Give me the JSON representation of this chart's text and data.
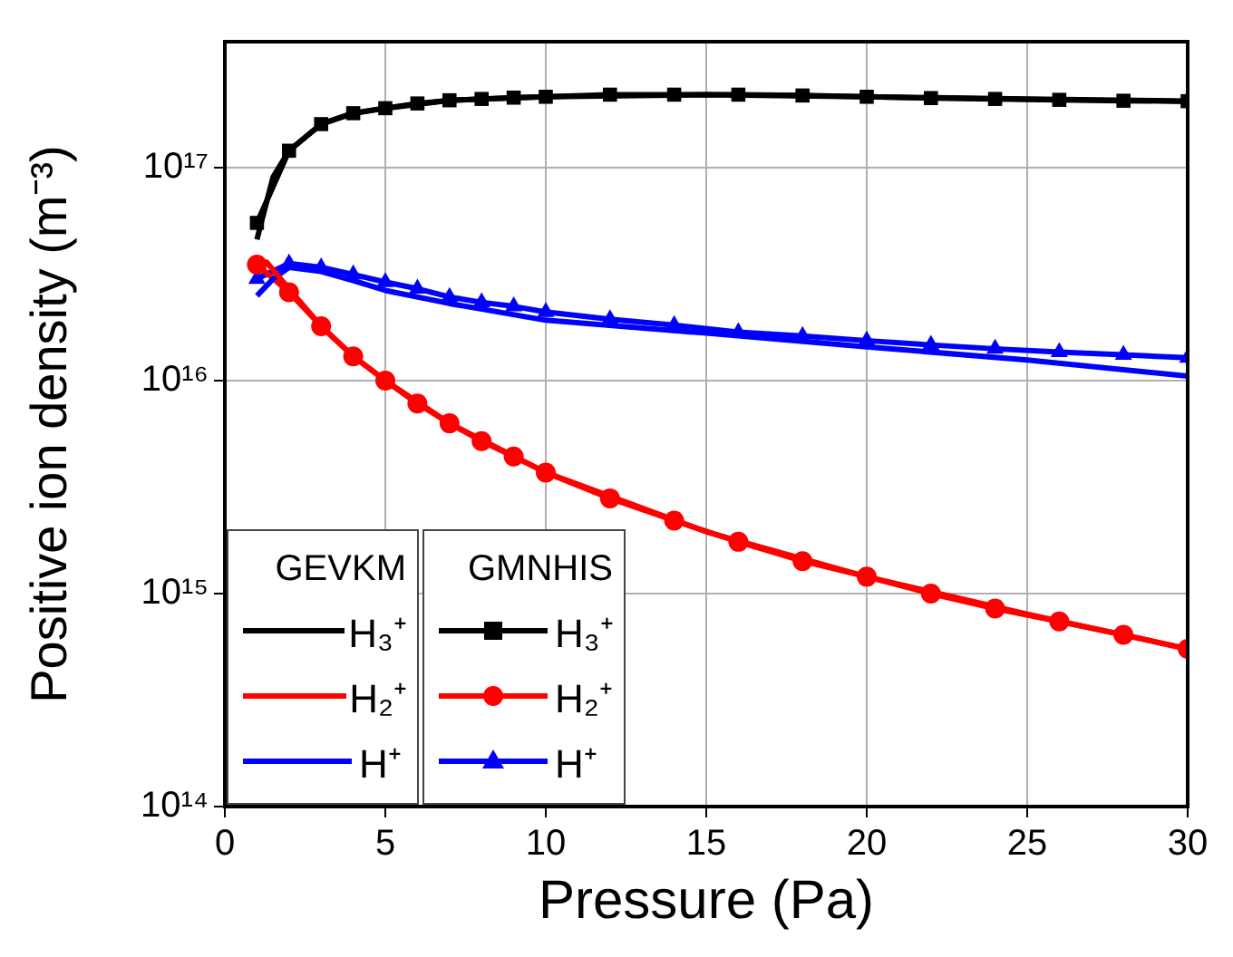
{
  "chart_data": {
    "type": "line",
    "xlabel": "Pressure (Pa)",
    "ylabel": "Positive ion density (m⁻³)",
    "annotations": [
      "GEVKM",
      "GMNHIS"
    ],
    "xlim": [
      0,
      30
    ],
    "xticks": [
      0,
      5,
      10,
      15,
      20,
      25,
      30
    ],
    "ylim": [
      100000000000000.0,
      3.9e+17
    ],
    "yticks": [
      {
        "value": 100000000000000.0,
        "label": "10¹⁴"
      },
      {
        "value": 1000000000000000.0,
        "label": "10¹⁵"
      },
      {
        "value": 1e+16,
        "label": "10¹⁶"
      },
      {
        "value": 1e+17,
        "label": "10¹⁷"
      }
    ],
    "log": "y",
    "grid": true,
    "legend": "bottom left",
    "line_style": "solid",
    "series": [
      {
        "name": "H₃⁺",
        "color": "#000000",
        "x": [
          1,
          1.5,
          2,
          3,
          4,
          5,
          7,
          10,
          15,
          20,
          25,
          30
        ],
        "values": [
          4.6e+16,
          9e+16,
          1.2e+17,
          1.6e+17,
          1.8e+17,
          1.9e+17,
          2.07e+17,
          2.15e+17,
          2.2e+17,
          2.15e+17,
          2.1e+17,
          2.05e+17
        ]
      },
      {
        "name": "H₂⁺",
        "color": "#ff0000",
        "x": [
          1,
          1.3,
          2,
          3,
          4,
          5,
          7,
          10,
          15,
          20,
          25,
          30
        ],
        "values": [
          3.5e+16,
          3.6e+16,
          2.7e+16,
          1.8e+16,
          1.3e+16,
          1e+16,
          6300000000000000.0,
          3700000000000000.0,
          1950000000000000.0,
          1200000000000000.0,
          800000000000000.0,
          550000000000000.0
        ]
      },
      {
        "name": "H⁺",
        "color": "#0000ff",
        "x": [
          1,
          1.5,
          2,
          3,
          4,
          5,
          7,
          10,
          15,
          20,
          25,
          30
        ],
        "values": [
          2.5e+16,
          3e+16,
          3.4e+16,
          3.25e+16,
          2.95e+16,
          2.65e+16,
          2.3e+16,
          1.92e+16,
          1.67e+16,
          1.44e+16,
          1.25e+16,
          1.05e+16
        ]
      },
      {
        "name": "H₃⁺",
        "color": "#000000",
        "marker": "square",
        "x": [
          1,
          2,
          3,
          4,
          5,
          6,
          7,
          8,
          9,
          10,
          12,
          14,
          16,
          18,
          20,
          22,
          24,
          26,
          28,
          30
        ],
        "values": [
          5.5e+16,
          1.2e+17,
          1.6e+17,
          1.8e+17,
          1.9e+17,
          2e+17,
          2.07e+17,
          2.1e+17,
          2.13e+17,
          2.15e+17,
          2.2e+17,
          2.2e+17,
          2.2e+17,
          2.18e+17,
          2.15e+17,
          2.12e+17,
          2.1e+17,
          2.08e+17,
          2.06e+17,
          2.05e+17
        ]
      },
      {
        "name": "H₂⁺",
        "color": "#ff0000",
        "marker": "circle",
        "x": [
          1,
          2,
          3,
          4,
          5,
          6,
          7,
          8,
          9,
          10,
          12,
          14,
          16,
          18,
          20,
          22,
          24,
          26,
          28,
          30
        ],
        "values": [
          3.5e+16,
          2.6e+16,
          1.8e+16,
          1.3e+16,
          1e+16,
          7800000000000000.0,
          6300000000000000.0,
          5200000000000000.0,
          4400000000000000.0,
          3700000000000000.0,
          2800000000000000.0,
          2200000000000000.0,
          1750000000000000.0,
          1420000000000000.0,
          1200000000000000.0,
          1000000000000000.0,
          850000000000000.0,
          740000000000000.0,
          640000000000000.0,
          550000000000000.0
        ]
      },
      {
        "name": "H⁺",
        "color": "#0000ff",
        "marker": "triangle",
        "x": [
          1,
          2,
          3,
          4,
          5,
          6,
          7,
          8,
          9,
          10,
          12,
          14,
          16,
          18,
          20,
          22,
          24,
          26,
          28,
          30
        ],
        "values": [
          3e+16,
          3.55e+16,
          3.4e+16,
          3.15e+16,
          2.9e+16,
          2.7e+16,
          2.47e+16,
          2.33e+16,
          2.23e+16,
          2.1e+16,
          1.94e+16,
          1.82e+16,
          1.69e+16,
          1.62e+16,
          1.54e+16,
          1.47e+16,
          1.41e+16,
          1.36e+16,
          1.32e+16,
          1.28e+16
        ]
      }
    ]
  }
}
